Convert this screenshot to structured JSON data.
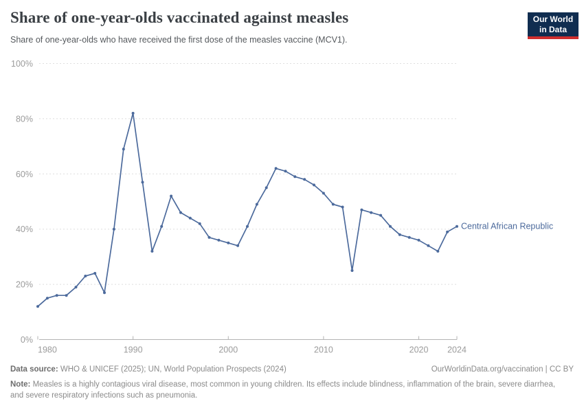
{
  "header": {
    "title": "Share of one-year-olds vaccinated against measles",
    "subtitle": "Share of one-year-olds who have received the first dose of the measles vaccine (MCV1).",
    "logo_line1": "Our World",
    "logo_line2": "in Data"
  },
  "chart_data": {
    "type": "line",
    "title": "Share of one-year-olds vaccinated against measles",
    "xlabel": "",
    "ylabel": "",
    "xlim": [
      1980,
      2024
    ],
    "ylim": [
      0,
      100
    ],
    "x_ticks": [
      1980,
      1990,
      2000,
      2010,
      2020,
      2024
    ],
    "y_ticks": [
      0,
      20,
      40,
      60,
      80,
      100
    ],
    "y_tick_suffix": "%",
    "grid": "horizontal-dashed",
    "legend": "line-end-label",
    "x": [
      1980,
      1981,
      1982,
      1983,
      1984,
      1985,
      1986,
      1987,
      1988,
      1989,
      1990,
      1991,
      1992,
      1993,
      1994,
      1995,
      1996,
      1997,
      1998,
      1999,
      2000,
      2001,
      2002,
      2003,
      2004,
      2005,
      2006,
      2007,
      2008,
      2009,
      2010,
      2011,
      2012,
      2013,
      2014,
      2015,
      2016,
      2017,
      2018,
      2019,
      2020,
      2021,
      2022,
      2023,
      2024
    ],
    "series": [
      {
        "name": "Central African Republic",
        "color": "#4c6a9c",
        "values": [
          12,
          15,
          16,
          16,
          19,
          23,
          24,
          17,
          40,
          69,
          82,
          57,
          32,
          41,
          52,
          46,
          44,
          42,
          37,
          36,
          35,
          34,
          41,
          49,
          55,
          62,
          61,
          59,
          58,
          56,
          53,
          49,
          48,
          25,
          47,
          46,
          45,
          41,
          38,
          37,
          36,
          34,
          32,
          39,
          41
        ]
      }
    ]
  },
  "colors": {
    "line": "#4c6a9c",
    "grid": "#dedede",
    "axis": "#b3b3b3",
    "tick_label": "#9b9b9b",
    "logo_bg": "#102d50",
    "logo_accent": "#cf2e2e"
  },
  "footer": {
    "datasource_label": "Data source:",
    "datasource": "WHO & UNICEF (2025); UN, World Population Prospects (2024)",
    "rights": "OurWorldinData.org/vaccination | CC BY",
    "note_label": "Note:",
    "note": "Measles is a highly contagious viral disease, most common in young children. Its effects include blindness, inflammation of the brain, severe diarrhea, and severe respiratory infections such as pneumonia."
  }
}
